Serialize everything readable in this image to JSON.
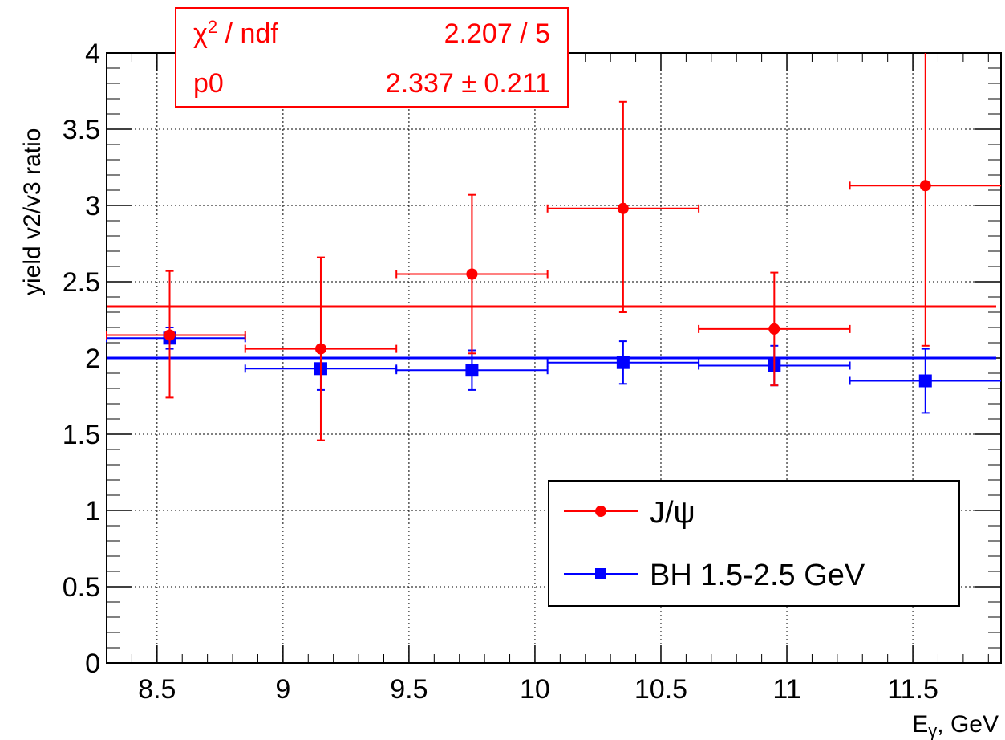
{
  "chart_data": {
    "type": "scatter",
    "xlabel_main": "E",
    "xlabel_sub": "γ",
    "xlabel_rest": ", GeV",
    "ylabel": "yield v2/v3 ratio",
    "xlim": [
      8.3,
      11.85
    ],
    "ylim": [
      0,
      4
    ],
    "x_ticks": [
      8.5,
      9,
      9.5,
      10,
      10.5,
      11,
      11.5
    ],
    "x_tick_labels": [
      "8.5",
      "9",
      "9.5",
      "10",
      "10.5",
      "11",
      "11.5"
    ],
    "y_ticks": [
      0,
      0.5,
      1,
      1.5,
      2,
      2.5,
      3,
      3.5,
      4
    ],
    "y_tick_labels": [
      "0",
      "0.5",
      "1",
      "1.5",
      "2",
      "2.5",
      "3",
      "3.5",
      "4"
    ],
    "grid": true,
    "legend_position": "bottom-right",
    "series": [
      {
        "name": "J/ψ",
        "color": "#ff0000",
        "marker": "circle",
        "points": [
          {
            "x": 8.55,
            "y": 2.15,
            "xerr": 0.3,
            "yerr_low": 0.41,
            "yerr_high": 0.42
          },
          {
            "x": 9.15,
            "y": 2.06,
            "xerr": 0.3,
            "yerr_low": 0.6,
            "yerr_high": 0.6
          },
          {
            "x": 9.75,
            "y": 2.55,
            "xerr": 0.3,
            "yerr_low": 0.52,
            "yerr_high": 0.52
          },
          {
            "x": 10.35,
            "y": 2.98,
            "xerr": 0.3,
            "yerr_low": 0.68,
            "yerr_high": 0.7
          },
          {
            "x": 10.95,
            "y": 2.19,
            "xerr": 0.3,
            "yerr_low": 0.37,
            "yerr_high": 0.37
          },
          {
            "x": 11.55,
            "y": 3.13,
            "xerr": 0.3,
            "yerr_low": 1.05,
            "yerr_high": 0.87
          }
        ],
        "fit_value": 2.337
      },
      {
        "name": "BH 1.5-2.5 GeV",
        "color": "#0000ff",
        "marker": "square",
        "points": [
          {
            "x": 8.55,
            "y": 2.13,
            "xerr": 0.3,
            "yerr_low": 0.07,
            "yerr_high": 0.07
          },
          {
            "x": 9.15,
            "y": 1.93,
            "xerr": 0.3,
            "yerr_low": 0.14,
            "yerr_high": 0.14
          },
          {
            "x": 9.75,
            "y": 1.92,
            "xerr": 0.3,
            "yerr_low": 0.13,
            "yerr_high": 0.13
          },
          {
            "x": 10.35,
            "y": 1.97,
            "xerr": 0.3,
            "yerr_low": 0.14,
            "yerr_high": 0.14
          },
          {
            "x": 10.95,
            "y": 1.95,
            "xerr": 0.3,
            "yerr_low": 0.13,
            "yerr_high": 0.13
          },
          {
            "x": 11.55,
            "y": 1.85,
            "xerr": 0.3,
            "yerr_low": 0.21,
            "yerr_high": 0.21
          }
        ],
        "fit_value": 2.0
      }
    ],
    "stats_box": {
      "row1_label_main": "χ",
      "row1_label_sup": "2",
      "row1_label_rest": " / ndf",
      "row1_value": "2.207 / 5",
      "row2_label": "p0",
      "row2_value": "2.337 ± 0.211"
    }
  }
}
